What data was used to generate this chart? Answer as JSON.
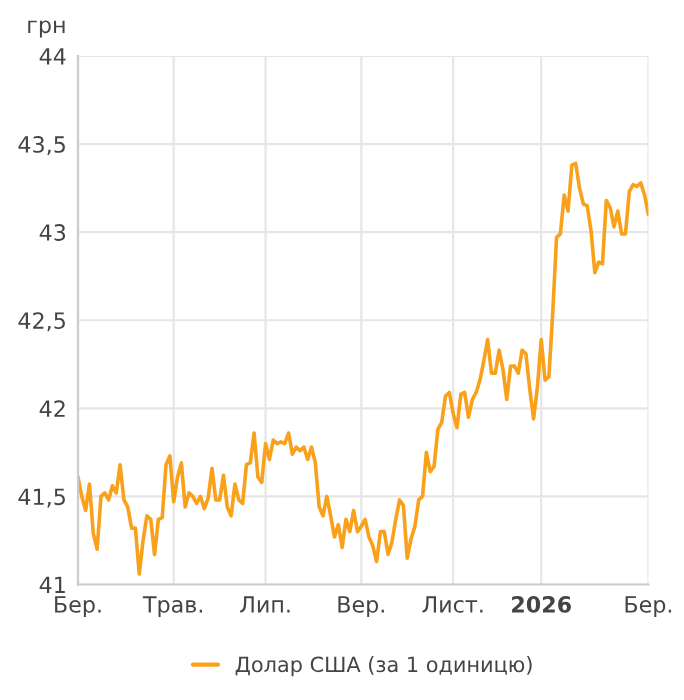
{
  "chart_data": {
    "type": "line",
    "ylabel": "грн",
    "legend": "bottom",
    "grid": true,
    "categories": [
      "Бер.",
      null,
      null,
      null,
      null,
      null,
      null,
      null,
      null,
      null,
      null,
      null,
      null,
      null,
      null,
      null,
      null,
      null,
      null,
      null,
      null,
      null,
      null,
      null,
      null,
      "Трав.",
      null,
      null,
      null,
      null,
      null,
      null,
      null,
      null,
      null,
      null,
      null,
      null,
      null,
      null,
      null,
      null,
      null,
      null,
      null,
      null,
      null,
      null,
      null,
      "Лип.",
      null,
      null,
      null,
      null,
      null,
      null,
      null,
      null,
      null,
      null,
      null,
      null,
      null,
      null,
      null,
      null,
      null,
      null,
      null,
      null,
      null,
      null,
      null,
      null,
      "Вер.",
      null,
      null,
      null,
      null,
      null,
      null,
      null,
      null,
      null,
      null,
      null,
      null,
      null,
      null,
      null,
      null,
      null,
      null,
      null,
      null,
      null,
      null,
      null,
      "Лист.",
      null,
      null,
      null,
      null,
      null,
      null,
      null,
      null,
      null,
      null,
      null,
      null,
      null,
      null,
      null,
      null,
      null,
      null,
      null,
      null,
      null,
      null,
      "2026",
      null,
      null,
      null,
      null,
      null,
      null,
      null,
      null,
      null,
      null,
      null,
      null,
      null,
      null,
      null,
      null,
      null,
      null,
      null,
      null,
      null,
      null,
      null,
      null,
      null,
      null,
      null,
      "Бер."
    ],
    "ylim": [
      41,
      44
    ],
    "yticks": [
      41,
      {
        "value": 41.5,
        "label": "41,5"
      },
      42,
      {
        "value": 42.5,
        "label": "42,5"
      },
      43,
      {
        "value": 43.5,
        "label": "43,5"
      },
      44
    ],
    "series": [
      {
        "name": "Долар США (за 1 одиницю)",
        "color": "#f9a11b",
        "values": [
          41.61,
          41.5,
          41.42,
          41.57,
          41.29,
          41.2,
          41.5,
          41.52,
          41.48,
          41.56,
          41.52,
          41.68,
          41.48,
          41.44,
          41.32,
          41.32,
          41.06,
          41.25,
          41.39,
          41.37,
          41.17,
          41.37,
          41.38,
          41.68,
          41.73,
          41.47,
          41.61,
          41.69,
          41.44,
          41.52,
          41.5,
          41.46,
          41.5,
          41.43,
          41.49,
          41.66,
          41.48,
          41.48,
          41.62,
          41.44,
          41.39,
          41.57,
          41.48,
          41.46,
          41.68,
          41.69,
          41.86,
          41.61,
          41.58,
          41.8,
          41.71,
          41.82,
          41.8,
          41.81,
          41.8,
          41.86,
          41.74,
          41.78,
          41.76,
          41.78,
          41.71,
          41.78,
          41.69,
          41.44,
          41.39,
          41.5,
          41.39,
          41.27,
          41.34,
          41.21,
          41.37,
          41.3,
          41.42,
          41.3,
          41.33,
          41.37,
          41.27,
          41.22,
          41.13,
          41.3,
          41.3,
          41.17,
          41.24,
          41.37,
          41.48,
          41.45,
          41.15,
          41.26,
          41.33,
          41.48,
          41.5,
          41.75,
          41.64,
          41.67,
          41.88,
          41.92,
          42.07,
          42.09,
          41.97,
          41.89,
          42.08,
          42.09,
          41.95,
          42.05,
          42.09,
          42.16,
          42.27,
          42.39,
          42.2,
          42.2,
          42.33,
          42.22,
          42.05,
          42.24,
          42.24,
          42.2,
          42.33,
          42.31,
          42.11,
          41.94,
          42.12,
          42.39,
          42.16,
          42.18,
          42.54,
          42.97,
          42.99,
          43.21,
          43.12,
          43.38,
          43.39,
          43.25,
          43.16,
          43.15,
          43.01,
          42.77,
          42.83,
          42.82,
          43.18,
          43.14,
          43.03,
          43.12,
          42.99,
          42.99,
          43.23,
          43.27,
          43.26,
          43.28,
          43.21,
          43.1
        ]
      }
    ]
  }
}
